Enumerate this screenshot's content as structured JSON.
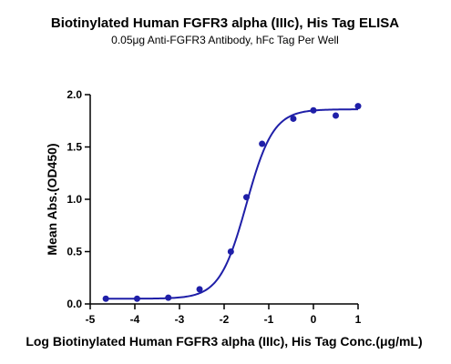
{
  "chart_data": {
    "type": "scatter",
    "title": "Biotinylated Human FGFR3 alpha (IIIc), His Tag ELISA",
    "subtitle": "0.05μg  Anti-FGFR3 Antibody, hFc Tag Per Well",
    "xlabel": "Log Biotinylated Human FGFR3 alpha (IIIc), His Tag Conc.(μg/mL)",
    "ylabel": "Mean Abs.(OD450)",
    "xlim": [
      -5,
      1
    ],
    "ylim": [
      0,
      2.0
    ],
    "x_ticks": [
      "-5",
      "-4",
      "-3",
      "-2",
      "-1",
      "0",
      "1"
    ],
    "y_ticks": [
      "0.0",
      "0.5",
      "1.0",
      "1.5",
      "2.0"
    ],
    "grid": false,
    "series": [
      {
        "points": [
          {
            "x": -4.65,
            "y": 0.05
          },
          {
            "x": -3.95,
            "y": 0.05
          },
          {
            "x": -3.25,
            "y": 0.06
          },
          {
            "x": -2.55,
            "y": 0.14
          },
          {
            "x": -1.85,
            "y": 0.5
          },
          {
            "x": -1.5,
            "y": 1.02
          },
          {
            "x": -1.15,
            "y": 1.53
          },
          {
            "x": -0.45,
            "y": 1.77
          },
          {
            "x": 0.0,
            "y": 1.85
          },
          {
            "x": 0.5,
            "y": 1.8
          },
          {
            "x": 1.0,
            "y": 1.89
          }
        ],
        "fit": {
          "model": "4PL",
          "bottom": 0.05,
          "top": 1.86,
          "log_ec50": -1.5,
          "hill": 1.45
        }
      }
    ],
    "colors": {
      "series": "#1f1fa8",
      "axis": "#000000"
    }
  }
}
